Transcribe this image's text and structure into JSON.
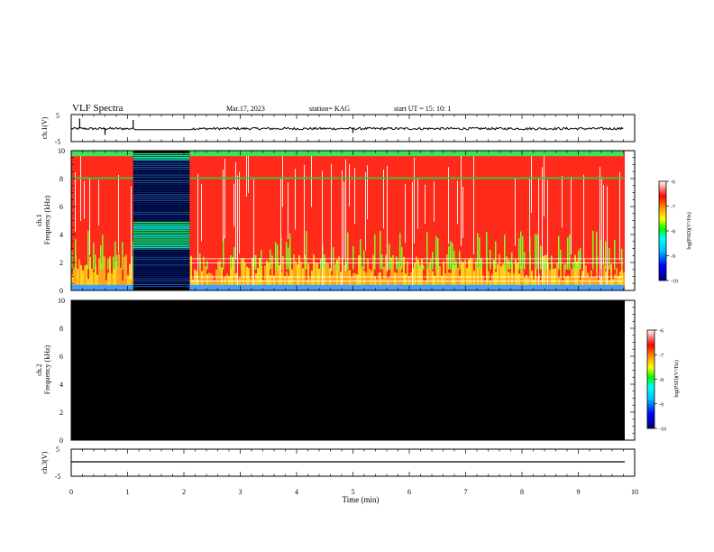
{
  "header": {
    "title": "VLF Spectra",
    "date": "Mar.17, 2023",
    "station": "station= KAG",
    "start": "start  UT =   15: 10: 1"
  },
  "chart_data": [
    {
      "type": "line",
      "panel": "ch1-waveform",
      "ylabel": "ch.1(V)",
      "ylim": [
        -5,
        5
      ],
      "yticks": [
        "5",
        "-5"
      ],
      "xlim": [
        0,
        10
      ],
      "series": [
        {
          "x": [
            0,
            0.15,
            0.6,
            1.1,
            1.12,
            2.1,
            5.0,
            9.8
          ],
          "values": [
            0,
            1.5,
            -1,
            1.2,
            -0.6,
            -0.6,
            -0.8,
            0
          ]
        }
      ]
    },
    {
      "type": "heatmap",
      "panel": "ch1-spectrogram",
      "ylabel": "ch.1 Frequency (kHz)",
      "ylim": [
        0,
        10
      ],
      "yticks": [
        "0",
        "2",
        "4",
        "6",
        "8",
        "10"
      ],
      "xlim": [
        0,
        9.8
      ],
      "gap": [
        1.1,
        2.1
      ],
      "colorbar": {
        "label": "log(PSD)(V²/Hz)",
        "range": [
          -10,
          -6
        ],
        "ticks": [
          "-6",
          "-7",
          "-8",
          "-9",
          "-10"
        ]
      }
    },
    {
      "type": "heatmap",
      "panel": "ch2-spectrogram",
      "ylabel": "ch.2 Frequency (kHz)",
      "ylim": [
        0,
        10
      ],
      "yticks": [
        "0",
        "2",
        "4",
        "6",
        "8",
        "10"
      ],
      "xlim": [
        0,
        9.8
      ],
      "fill": "#000000",
      "colorbar": {
        "label": "log(PSD)(V²/Hz)",
        "range": [
          -10,
          -6
        ],
        "ticks": [
          "-6",
          "-7",
          "-8",
          "-9",
          "-10"
        ]
      }
    },
    {
      "type": "line",
      "panel": "ch3-waveform",
      "ylabel": "ch.3(V)",
      "ylim": [
        -5,
        5
      ],
      "yticks": [
        "5",
        "-5"
      ],
      "xlim": [
        0,
        10
      ],
      "series": [
        {
          "x": [
            0,
            9.8
          ],
          "values": [
            -1,
            -1
          ]
        }
      ]
    }
  ],
  "xaxis": {
    "label": "Time  (min)",
    "ticks": [
      "0",
      "1",
      "2",
      "3",
      "4",
      "5",
      "6",
      "7",
      "8",
      "9",
      "10"
    ]
  },
  "colors": {
    "ink": "#000000",
    "white": "#ffffff",
    "palette": [
      "#00008b",
      "#0000ff",
      "#00bfff",
      "#00ffff",
      "#00ff00",
      "#ffff00",
      "#ffa500",
      "#ff0000",
      "#ffffff"
    ]
  }
}
